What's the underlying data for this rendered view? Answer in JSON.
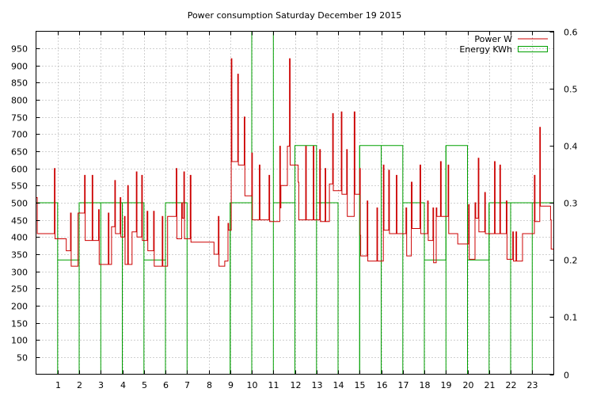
{
  "chart_data": {
    "type": "line",
    "title": "Power consumption Saturday December 19 2015",
    "x_ticks": [
      "1",
      "2",
      "3",
      "4",
      "5",
      "6",
      "7",
      "8",
      "9",
      "10",
      "11",
      "12",
      "13",
      "14",
      "15",
      "16",
      "17",
      "18",
      "19",
      "20",
      "21",
      "22",
      "23"
    ],
    "xlim": [
      0,
      24
    ],
    "y_left": {
      "lim": [
        0,
        1000
      ],
      "ticks": [
        50,
        100,
        150,
        200,
        250,
        300,
        350,
        400,
        450,
        500,
        550,
        600,
        650,
        700,
        750,
        800,
        850,
        900,
        950
      ]
    },
    "y_right": {
      "lim": [
        0,
        0.6
      ],
      "ticks": [
        "0",
        "0.1",
        "0.2",
        "0.3",
        "0.4",
        "0.5",
        "0.6"
      ],
      "tick_values": [
        0,
        0.1,
        0.2,
        0.3,
        0.4,
        0.5,
        0.6
      ]
    },
    "grid": true,
    "legend_position": "top-right",
    "series": [
      {
        "name": "Power W",
        "color": "#cc0000",
        "axis": "left",
        "style": "step",
        "points": [
          [
            0,
            515
          ],
          [
            0.06,
            410
          ],
          [
            0.5,
            410
          ],
          [
            0.85,
            600
          ],
          [
            0.88,
            395
          ],
          [
            1.35,
            395
          ],
          [
            1.4,
            360
          ],
          [
            1.55,
            360
          ],
          [
            1.6,
            470
          ],
          [
            1.63,
            315
          ],
          [
            1.9,
            315
          ],
          [
            1.95,
            470
          ],
          [
            2.2,
            470
          ],
          [
            2.25,
            580
          ],
          [
            2.28,
            390
          ],
          [
            2.55,
            390
          ],
          [
            2.6,
            580
          ],
          [
            2.63,
            390
          ],
          [
            2.85,
            390
          ],
          [
            2.9,
            480
          ],
          [
            2.93,
            320
          ],
          [
            3.3,
            320
          ],
          [
            3.35,
            470
          ],
          [
            3.38,
            320
          ],
          [
            3.45,
            320
          ],
          [
            3.5,
            430
          ],
          [
            3.6,
            430
          ],
          [
            3.65,
            565
          ],
          [
            3.68,
            410
          ],
          [
            3.85,
            410
          ],
          [
            3.9,
            515
          ],
          [
            3.93,
            400
          ],
          [
            4.05,
            400
          ],
          [
            4.1,
            460
          ],
          [
            4.13,
            320
          ],
          [
            4.2,
            320
          ],
          [
            4.25,
            550
          ],
          [
            4.28,
            320
          ],
          [
            4.4,
            320
          ],
          [
            4.45,
            415
          ],
          [
            4.6,
            415
          ],
          [
            4.65,
            590
          ],
          [
            4.68,
            400
          ],
          [
            4.85,
            400
          ],
          [
            4.9,
            580
          ],
          [
            4.93,
            390
          ],
          [
            5.1,
            390
          ],
          [
            5.15,
            475
          ],
          [
            5.18,
            360
          ],
          [
            5.4,
            360
          ],
          [
            5.45,
            475
          ],
          [
            5.48,
            315
          ],
          [
            5.8,
            315
          ],
          [
            5.85,
            460
          ],
          [
            5.88,
            315
          ],
          [
            6.05,
            315
          ],
          [
            6.1,
            460
          ],
          [
            6.45,
            460
          ],
          [
            6.5,
            600
          ],
          [
            6.53,
            395
          ],
          [
            6.7,
            395
          ],
          [
            6.75,
            500
          ],
          [
            6.78,
            455
          ],
          [
            6.8,
            455
          ],
          [
            6.85,
            590
          ],
          [
            6.88,
            395
          ],
          [
            7.1,
            395
          ],
          [
            7.15,
            580
          ],
          [
            7.18,
            385
          ],
          [
            8.2,
            385
          ],
          [
            8.25,
            350
          ],
          [
            8.4,
            350
          ],
          [
            8.45,
            460
          ],
          [
            8.48,
            315
          ],
          [
            8.7,
            315
          ],
          [
            8.75,
            330
          ],
          [
            8.85,
            330
          ],
          [
            8.9,
            440
          ],
          [
            8.93,
            420
          ],
          [
            9.05,
            920
          ],
          [
            9.08,
            620
          ],
          [
            9.3,
            620
          ],
          [
            9.35,
            875
          ],
          [
            9.38,
            610
          ],
          [
            9.6,
            610
          ],
          [
            9.65,
            750
          ],
          [
            9.68,
            520
          ],
          [
            9.95,
            520
          ],
          [
            10.0,
            645
          ],
          [
            10.03,
            450
          ],
          [
            10.3,
            450
          ],
          [
            10.35,
            610
          ],
          [
            10.38,
            450
          ],
          [
            10.75,
            450
          ],
          [
            10.8,
            580
          ],
          [
            10.83,
            445
          ],
          [
            11.25,
            445
          ],
          [
            11.3,
            665
          ],
          [
            11.33,
            485
          ],
          [
            11.35,
            550
          ],
          [
            11.6,
            550
          ],
          [
            11.65,
            665
          ],
          [
            11.68,
            665
          ],
          [
            11.75,
            920
          ],
          [
            11.78,
            610
          ],
          [
            12.1,
            610
          ],
          [
            12.15,
            560
          ],
          [
            12.18,
            450
          ],
          [
            12.45,
            450
          ],
          [
            12.5,
            665
          ],
          [
            12.53,
            450
          ],
          [
            12.8,
            450
          ],
          [
            12.85,
            665
          ],
          [
            12.88,
            450
          ],
          [
            13.1,
            450
          ],
          [
            13.15,
            655
          ],
          [
            13.18,
            445
          ],
          [
            13.35,
            445
          ],
          [
            13.4,
            600
          ],
          [
            13.43,
            445
          ],
          [
            13.55,
            445
          ],
          [
            13.6,
            555
          ],
          [
            13.7,
            555
          ],
          [
            13.75,
            760
          ],
          [
            13.78,
            535
          ],
          [
            14.1,
            535
          ],
          [
            14.15,
            765
          ],
          [
            14.18,
            525
          ],
          [
            14.35,
            525
          ],
          [
            14.4,
            655
          ],
          [
            14.43,
            460
          ],
          [
            14.7,
            460
          ],
          [
            14.75,
            765
          ],
          [
            14.78,
            525
          ],
          [
            14.95,
            525
          ],
          [
            15.0,
            600
          ],
          [
            15.03,
            405
          ],
          [
            15.05,
            345
          ],
          [
            15.3,
            345
          ],
          [
            15.35,
            505
          ],
          [
            15.38,
            330
          ],
          [
            15.75,
            330
          ],
          [
            15.8,
            485
          ],
          [
            15.83,
            330
          ],
          [
            16.05,
            330
          ],
          [
            16.1,
            610
          ],
          [
            16.13,
            420
          ],
          [
            16.3,
            420
          ],
          [
            16.35,
            595
          ],
          [
            16.38,
            410
          ],
          [
            16.65,
            410
          ],
          [
            16.7,
            580
          ],
          [
            16.73,
            410
          ],
          [
            17.1,
            410
          ],
          [
            17.15,
            485
          ],
          [
            17.18,
            345
          ],
          [
            17.35,
            345
          ],
          [
            17.4,
            560
          ],
          [
            17.43,
            425
          ],
          [
            17.75,
            425
          ],
          [
            17.8,
            610
          ],
          [
            17.83,
            410
          ],
          [
            18.1,
            410
          ],
          [
            18.15,
            505
          ],
          [
            18.18,
            390
          ],
          [
            18.35,
            390
          ],
          [
            18.4,
            485
          ],
          [
            18.43,
            325
          ],
          [
            18.5,
            325
          ],
          [
            18.55,
            485
          ],
          [
            18.58,
            460
          ],
          [
            18.7,
            460
          ],
          [
            18.75,
            620
          ],
          [
            18.78,
            460
          ],
          [
            19.05,
            460
          ],
          [
            19.1,
            610
          ],
          [
            19.13,
            410
          ],
          [
            19.5,
            410
          ],
          [
            19.55,
            380
          ],
          [
            20.0,
            380
          ],
          [
            20.05,
            495
          ],
          [
            20.08,
            335
          ],
          [
            20.3,
            335
          ],
          [
            20.35,
            500
          ],
          [
            20.38,
            455
          ],
          [
            20.45,
            455
          ],
          [
            20.5,
            630
          ],
          [
            20.53,
            415
          ],
          [
            20.75,
            415
          ],
          [
            20.8,
            530
          ],
          [
            20.83,
            410
          ],
          [
            21.2,
            410
          ],
          [
            21.25,
            620
          ],
          [
            21.28,
            410
          ],
          [
            21.45,
            410
          ],
          [
            21.5,
            610
          ],
          [
            21.53,
            410
          ],
          [
            21.75,
            410
          ],
          [
            21.8,
            505
          ],
          [
            21.83,
            335
          ],
          [
            22.05,
            335
          ],
          [
            22.1,
            415
          ],
          [
            22.13,
            330
          ],
          [
            22.2,
            330
          ],
          [
            22.25,
            415
          ],
          [
            22.28,
            330
          ],
          [
            22.5,
            330
          ],
          [
            22.55,
            410
          ],
          [
            22.6,
            410
          ],
          [
            23.05,
            410
          ],
          [
            23.1,
            580
          ],
          [
            23.13,
            445
          ],
          [
            23.3,
            445
          ],
          [
            23.35,
            720
          ],
          [
            23.38,
            490
          ],
          [
            23.8,
            490
          ],
          [
            23.85,
            450
          ],
          [
            23.88,
            365
          ],
          [
            24,
            365
          ]
        ]
      },
      {
        "name": "Energy KWh",
        "color": "#00a000",
        "axis": "right",
        "style": "histeps",
        "values": [
          0.3,
          0.2,
          0.3,
          0.3,
          0.3,
          0.2,
          0.3,
          0,
          0,
          0.3,
          0.6,
          0.3,
          0.4,
          0.3,
          0,
          0.4,
          0.4,
          0.3,
          0.2,
          0.4,
          0.2,
          0.3,
          0.3,
          0.3
        ]
      }
    ]
  }
}
